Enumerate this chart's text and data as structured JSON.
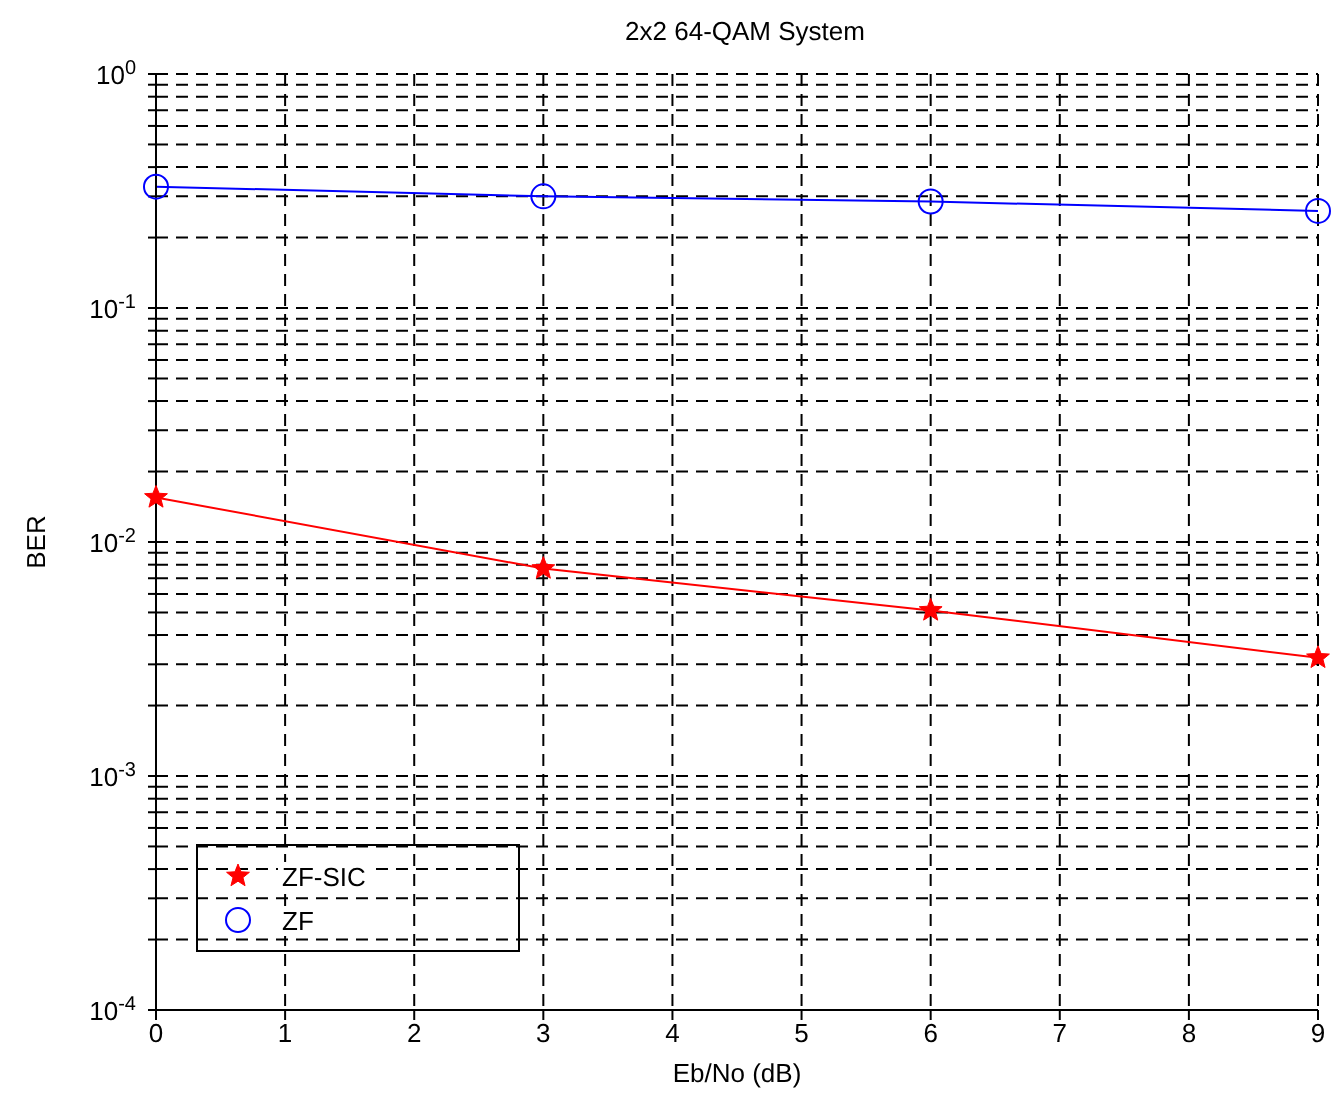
{
  "chart_data": {
    "type": "line",
    "title": "2x2 64-QAM System",
    "xlabel": "Eb/No (dB)",
    "ylabel": "BER",
    "log": "y",
    "grid": true,
    "legend": "bottom left",
    "line_style": "solid",
    "xlim": [
      0,
      9
    ],
    "xticks": [
      0,
      1,
      2,
      3,
      4,
      5,
      6,
      7,
      8,
      9
    ],
    "ylim": [
      0.0001,
      1
    ],
    "yticks": [
      {
        "value": 0.0001,
        "label": "10$^{-4}$"
      },
      {
        "value": 0.0002,
        "label": null
      },
      {
        "value": 0.0003,
        "label": null
      },
      {
        "value": 0.0004,
        "label": null
      },
      {
        "value": 0.0005,
        "label": null
      },
      {
        "value": 0.0006,
        "label": null
      },
      {
        "value": 0.0007,
        "label": null
      },
      {
        "value": 0.0008,
        "label": null
      },
      {
        "value": 0.0009,
        "label": null
      },
      {
        "value": 0.001,
        "label": "10$^{-3}$"
      },
      {
        "value": 0.002,
        "label": null
      },
      {
        "value": 0.003,
        "label": null
      },
      {
        "value": 0.004,
        "label": null
      },
      {
        "value": 0.005,
        "label": null
      },
      {
        "value": 0.006,
        "label": null
      },
      {
        "value": 0.007,
        "label": null
      },
      {
        "value": 0.008,
        "label": null
      },
      {
        "value": 0.009,
        "label": null
      },
      {
        "value": 0.01,
        "label": "10$^{-2}$"
      },
      {
        "value": 0.02,
        "label": null
      },
      {
        "value": 0.03,
        "label": null
      },
      {
        "value": 0.04,
        "label": null
      },
      {
        "value": 0.05,
        "label": null
      },
      {
        "value": 0.06,
        "label": null
      },
      {
        "value": 0.07,
        "label": null
      },
      {
        "value": 0.08,
        "label": null
      },
      {
        "value": 0.09,
        "label": null
      },
      {
        "value": 0.1,
        "label": "10$^{-1}$"
      },
      {
        "value": 0.2,
        "label": null
      },
      {
        "value": 0.3,
        "label": null
      },
      {
        "value": 0.4,
        "label": null
      },
      {
        "value": 0.5,
        "label": null
      },
      {
        "value": 0.6,
        "label": null
      },
      {
        "value": 0.7,
        "label": null
      },
      {
        "value": 0.8,
        "label": null
      },
      {
        "value": 0.9,
        "label": null
      },
      {
        "value": 1,
        "label": "10$^{0}$"
      }
    ],
    "x": [
      0,
      3,
      6,
      9
    ],
    "series": [
      {
        "name": "ZF-SIC",
        "color": "#ff0000",
        "marker": "star",
        "values": [
          0.0155,
          0.0077,
          0.0051,
          0.0032
        ]
      },
      {
        "name": "ZF",
        "color": "#0000ff",
        "marker": "circle",
        "values": [
          0.33,
          0.3,
          0.285,
          0.26
        ]
      }
    ]
  }
}
